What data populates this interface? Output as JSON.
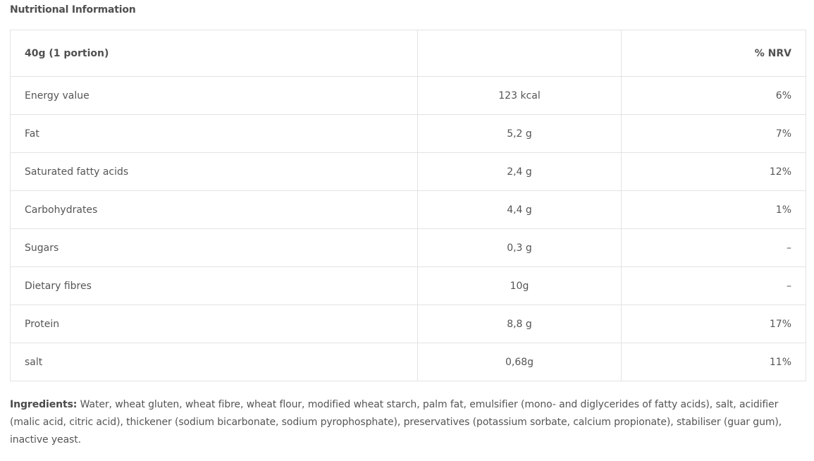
{
  "title": "Nutritional Information",
  "table": {
    "header": [
      "40g (1 portion)",
      "",
      "% NRV"
    ],
    "rows": [
      [
        "Energy value",
        "123 kcal",
        "6%"
      ],
      [
        "Fat",
        "5,2 g",
        "7%"
      ],
      [
        "Saturated fatty acids",
        "2,4 g",
        "12%"
      ],
      [
        "Carbohydrates",
        "4,4 g",
        "1%"
      ],
      [
        "Sugars",
        "0,3 g",
        "–"
      ],
      [
        "Dietary fibres",
        "10g",
        "–"
      ],
      [
        "Protein",
        "8,8 g",
        "17%"
      ],
      [
        "salt",
        "0,68g",
        "11%"
      ]
    ]
  },
  "ingredients": {
    "label": "Ingredients:",
    "text": " Water, wheat gluten, wheat fibre, wheat flour, modified wheat starch, palm fat, emulsifier (mono- and diglycerides of fatty acids), salt, acidifier (malic acid, citric acid), thickener (sodium bicarbonate, sodium pyrophosphate), preservatives (potassium sorbate, calcium propionate), stabiliser (guar gum), inactive yeast."
  }
}
